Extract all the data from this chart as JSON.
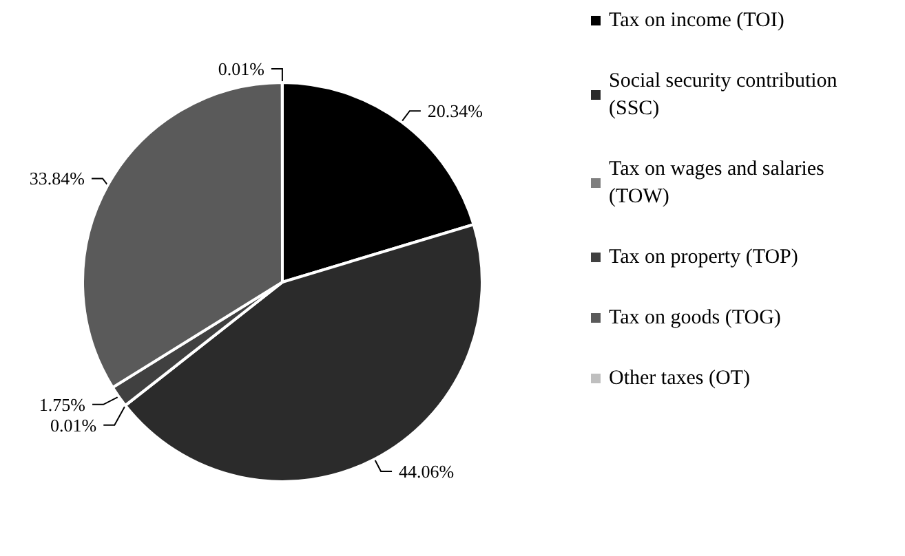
{
  "chart_data": {
    "type": "pie",
    "categories": [
      "Tax on income (TOI)",
      "Social security contribution (SSC)",
      "Tax on wages and salaries (TOW)",
      "Tax on property (TOP)",
      "Tax on goods (TOG)",
      "Other taxes (OT)"
    ],
    "values": [
      20.34,
      44.06,
      0.01,
      1.75,
      33.84,
      0.01
    ],
    "value_labels": [
      "20.34%",
      "44.06%",
      "0.01%",
      "1.75%",
      "33.84%",
      "0.01%"
    ],
    "colors": [
      "#000000",
      "#2b2b2b",
      "#7f7f7f",
      "#404040",
      "#5a5a5a",
      "#bfbfbf"
    ],
    "legend": "right"
  }
}
